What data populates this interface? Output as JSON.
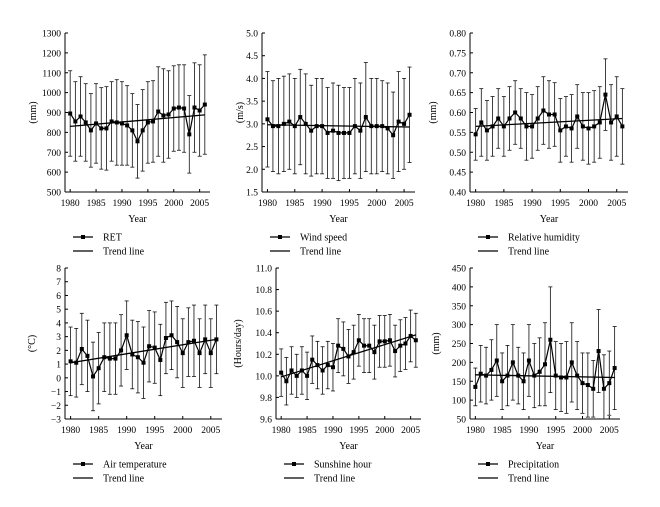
{
  "chart_data": [
    {
      "type": "line",
      "ylabel": "(mm)",
      "xlabel": "Year",
      "xlim": [
        1979,
        2007
      ],
      "ylim": [
        500,
        1300
      ],
      "yticks": [
        500,
        600,
        700,
        800,
        900,
        1000,
        1100,
        1200,
        1300
      ],
      "ytick_labels": [
        "500",
        "600",
        "700",
        "800",
        "900",
        "1000",
        "1100",
        "1200",
        "1300"
      ],
      "xticks": [
        1980,
        1985,
        1990,
        1995,
        2000,
        2005
      ],
      "xtick_labels": [
        "1980",
        "1985",
        "1990",
        "1995",
        "2000",
        "2005"
      ],
      "x": [
        1980,
        1981,
        1982,
        1983,
        1984,
        1985,
        1986,
        1987,
        1988,
        1989,
        1990,
        1991,
        1992,
        1993,
        1994,
        1995,
        1996,
        1997,
        1998,
        1999,
        2000,
        2001,
        2002,
        2003,
        2004,
        2005,
        2006
      ],
      "series": [
        {
          "name": "RET",
          "values": [
            895,
            855,
            880,
            850,
            810,
            845,
            820,
            820,
            855,
            850,
            845,
            835,
            810,
            755,
            810,
            850,
            855,
            905,
            885,
            890,
            920,
            925,
            920,
            790,
            925,
            910,
            940
          ],
          "error": [
            215,
            200,
            200,
            195,
            185,
            200,
            205,
            210,
            200,
            215,
            210,
            200,
            185,
            185,
            205,
            205,
            205,
            225,
            235,
            220,
            215,
            215,
            220,
            195,
            225,
            230,
            250
          ]
        }
      ],
      "trend": {
        "name": "Trend line",
        "x": [
          1980,
          2006
        ],
        "y": [
          830,
          888
        ]
      },
      "legend": [
        "RET",
        "Trend line"
      ],
      "grid": false
    },
    {
      "type": "line",
      "ylabel": "(m/s)",
      "xlabel": "Year",
      "xlim": [
        1979,
        2007
      ],
      "ylim": [
        1.5,
        5.0
      ],
      "yticks": [
        1.5,
        2.0,
        2.5,
        3.0,
        3.5,
        4.0,
        4.5,
        5.0
      ],
      "ytick_labels": [
        "1.5",
        "2.0",
        "2.5",
        "3.0",
        "3.5",
        "4.0",
        "4.5",
        "5.0"
      ],
      "xticks": [
        1980,
        1985,
        1990,
        1995,
        2000,
        2005
      ],
      "xtick_labels": [
        "1980",
        "1985",
        "1990",
        "1995",
        "2000",
        "2005"
      ],
      "x": [
        1980,
        1981,
        1982,
        1983,
        1984,
        1985,
        1986,
        1987,
        1988,
        1989,
        1990,
        1991,
        1992,
        1993,
        1994,
        1995,
        1996,
        1997,
        1998,
        1999,
        2000,
        2001,
        2002,
        2003,
        2004,
        2005,
        2006
      ],
      "series": [
        {
          "name": "Wind speed",
          "values": [
            3.1,
            2.95,
            2.95,
            3.0,
            3.05,
            2.95,
            3.15,
            3.0,
            2.85,
            2.95,
            2.95,
            2.8,
            2.85,
            2.8,
            2.8,
            2.8,
            2.95,
            2.85,
            3.15,
            2.95,
            2.95,
            2.95,
            2.9,
            2.75,
            3.05,
            3.0,
            3.2
          ],
          "error": [
            1.05,
            1.0,
            1.05,
            1.05,
            1.05,
            1.05,
            1.05,
            1.1,
            1.0,
            1.05,
            1.05,
            1.0,
            1.05,
            1.05,
            1.0,
            1.0,
            1.05,
            1.05,
            1.2,
            1.05,
            1.05,
            1.0,
            1.0,
            0.95,
            1.1,
            1.0,
            1.05
          ]
        }
      ],
      "trend": {
        "name": "Trend line",
        "x": [
          1980,
          2006
        ],
        "y": [
          2.98,
          2.93
        ]
      },
      "legend": [
        "Wind speed",
        "Trend line"
      ],
      "grid": false
    },
    {
      "type": "line",
      "ylabel": "(mm)",
      "xlabel": "Year",
      "xlim": [
        1979,
        2007
      ],
      "ylim": [
        0.4,
        0.8
      ],
      "yticks": [
        0.4,
        0.45,
        0.5,
        0.55,
        0.6,
        0.65,
        0.7,
        0.75,
        0.8
      ],
      "ytick_labels": [
        "0.40",
        "0.45",
        "0.50",
        "0.55",
        "0.60",
        "0.65",
        "0.70",
        "0.75",
        "0.80"
      ],
      "xticks": [
        1980,
        1985,
        1990,
        1995,
        2000,
        2005
      ],
      "xtick_labels": [
        "1980",
        "1985",
        "1990",
        "1995",
        "2000",
        "2005"
      ],
      "x": [
        1980,
        1981,
        1982,
        1983,
        1984,
        1985,
        1986,
        1987,
        1988,
        1989,
        1990,
        1991,
        1992,
        1993,
        1994,
        1995,
        1996,
        1997,
        1998,
        1999,
        2000,
        2001,
        2002,
        2003,
        2004,
        2005,
        2006
      ],
      "series": [
        {
          "name": "Relative humidity",
          "values": [
            0.545,
            0.575,
            0.555,
            0.565,
            0.585,
            0.565,
            0.585,
            0.6,
            0.585,
            0.565,
            0.565,
            0.585,
            0.605,
            0.595,
            0.595,
            0.555,
            0.565,
            0.56,
            0.59,
            0.565,
            0.56,
            0.565,
            0.575,
            0.645,
            0.575,
            0.59,
            0.565
          ],
          "error": [
            0.065,
            0.085,
            0.075,
            0.075,
            0.075,
            0.075,
            0.08,
            0.08,
            0.075,
            0.085,
            0.08,
            0.08,
            0.085,
            0.085,
            0.08,
            0.08,
            0.075,
            0.085,
            0.08,
            0.085,
            0.09,
            0.09,
            0.09,
            0.09,
            0.095,
            0.1,
            0.095
          ]
        }
      ],
      "trend": {
        "name": "Trend line",
        "x": [
          1980,
          2006
        ],
        "y": [
          0.565,
          0.585
        ]
      },
      "legend": [
        "Relative humidity",
        "Trend line"
      ],
      "grid": false
    },
    {
      "type": "line",
      "ylabel": "(°C)",
      "xlabel": "Year",
      "xlim": [
        1979,
        2007
      ],
      "ylim": [
        -3,
        8
      ],
      "yticks": [
        -3,
        -2,
        -1,
        0,
        1,
        2,
        3,
        4,
        5,
        6,
        7,
        8
      ],
      "ytick_labels": [
        "−3",
        "−2",
        "−1",
        "0",
        "1",
        "2",
        "3",
        "4",
        "5",
        "6",
        "7",
        "8"
      ],
      "xticks": [
        1980,
        1985,
        1990,
        1995,
        2000,
        2005
      ],
      "xtick_labels": [
        "1980",
        "1985",
        "1990",
        "1995",
        "2000",
        "2005"
      ],
      "x": [
        1980,
        1981,
        1982,
        1983,
        1984,
        1985,
        1986,
        1987,
        1988,
        1989,
        1990,
        1991,
        1992,
        1993,
        1994,
        1995,
        1996,
        1997,
        1998,
        1999,
        2000,
        2001,
        2002,
        2003,
        2004,
        2005,
        2006
      ],
      "series": [
        {
          "name": "Air temperature",
          "values": [
            1.2,
            1.1,
            2.1,
            1.6,
            0.1,
            0.7,
            1.5,
            1.4,
            1.4,
            2.0,
            3.1,
            1.7,
            1.5,
            1.1,
            2.3,
            2.2,
            1.3,
            2.9,
            3.1,
            2.6,
            1.8,
            2.6,
            2.7,
            1.8,
            2.8,
            1.8,
            2.8
          ],
          "error": [
            2.5,
            2.5,
            2.6,
            2.6,
            2.5,
            2.6,
            2.5,
            2.6,
            2.6,
            2.6,
            2.5,
            2.5,
            2.6,
            2.6,
            2.6,
            2.6,
            2.6,
            2.6,
            2.5,
            2.6,
            2.5,
            2.5,
            2.6,
            2.5,
            2.5,
            2.5,
            2.5
          ]
        }
      ],
      "trend": {
        "name": "Trend line",
        "x": [
          1980,
          2006
        ],
        "y": [
          1.1,
          2.8
        ]
      },
      "legend": [
        "Air temperature",
        "Trend line"
      ],
      "grid": false
    },
    {
      "type": "line",
      "ylabel": "(Hours/day)",
      "xlabel": "Year",
      "xlim": [
        1979,
        2007
      ],
      "ylim": [
        9.6,
        11.0
      ],
      "yticks": [
        9.6,
        9.8,
        10.0,
        10.2,
        10.4,
        10.6,
        10.8,
        11.0
      ],
      "ytick_labels": [
        "9.6",
        "9.8",
        "10.0",
        "10.2",
        "10.4",
        "10.6",
        "10.8",
        "11.0"
      ],
      "xticks": [
        1980,
        1985,
        1990,
        1995,
        2000,
        2005
      ],
      "xtick_labels": [
        "1980",
        "1985",
        "1990",
        "1995",
        "2000",
        "2005"
      ],
      "x": [
        1980,
        1981,
        1982,
        1983,
        1984,
        1985,
        1986,
        1987,
        1988,
        1989,
        1990,
        1991,
        1992,
        1993,
        1994,
        1995,
        1996,
        1997,
        1998,
        1999,
        2000,
        2001,
        2002,
        2003,
        2004,
        2005,
        2006
      ],
      "series": [
        {
          "name": "Sunshine hour",
          "values": [
            10.03,
            9.95,
            10.05,
            10.0,
            10.05,
            10.0,
            10.15,
            10.1,
            10.05,
            10.1,
            10.08,
            10.28,
            10.25,
            10.18,
            10.22,
            10.33,
            10.28,
            10.28,
            10.22,
            10.32,
            10.32,
            10.33,
            10.23,
            10.28,
            10.3,
            10.37,
            10.33
          ],
          "error": [
            0.22,
            0.22,
            0.22,
            0.2,
            0.22,
            0.22,
            0.22,
            0.22,
            0.22,
            0.22,
            0.22,
            0.25,
            0.25,
            0.25,
            0.25,
            0.24,
            0.25,
            0.25,
            0.25,
            0.24,
            0.24,
            0.24,
            0.24,
            0.24,
            0.24,
            0.24,
            0.25
          ]
        }
      ],
      "trend": {
        "name": "Trend line",
        "x": [
          1980,
          2006
        ],
        "y": [
          9.99,
          10.38
        ]
      },
      "legend": [
        "Sunshine hour",
        "Trend line"
      ],
      "grid": false
    },
    {
      "type": "line",
      "ylabel": "(mm)",
      "xlabel": "Year",
      "xlim": [
        1979,
        2007
      ],
      "ylim": [
        50,
        450
      ],
      "yticks": [
        50,
        100,
        150,
        200,
        250,
        300,
        350,
        400,
        450
      ],
      "ytick_labels": [
        "50",
        "100",
        "150",
        "200",
        "250",
        "300",
        "350",
        "400",
        "450"
      ],
      "xticks": [
        1980,
        1985,
        1990,
        1995,
        2000,
        2005
      ],
      "xtick_labels": [
        "1980",
        "1985",
        "1990",
        "1995",
        "2000",
        "2005"
      ],
      "x": [
        1980,
        1981,
        1982,
        1983,
        1984,
        1985,
        1986,
        1987,
        1988,
        1989,
        1990,
        1991,
        1992,
        1993,
        1994,
        1995,
        1996,
        1997,
        1998,
        1999,
        2000,
        2001,
        2002,
        2003,
        2004,
        2005,
        2006
      ],
      "series": [
        {
          "name": "Precipitation",
          "values": [
            135,
            170,
            165,
            180,
            205,
            150,
            165,
            200,
            165,
            150,
            205,
            165,
            175,
            195,
            260,
            165,
            160,
            160,
            200,
            165,
            145,
            140,
            130,
            230,
            130,
            145,
            185
          ],
          "error": [
            50,
            75,
            75,
            80,
            95,
            75,
            80,
            100,
            75,
            75,
            95,
            85,
            90,
            110,
            140,
            90,
            90,
            95,
            105,
            90,
            80,
            85,
            75,
            110,
            90,
            85,
            110
          ]
        }
      ],
      "trend": {
        "name": "Trend line",
        "x": [
          1980,
          2006
        ],
        "y": [
          167,
          160
        ]
      },
      "legend": [
        "Precipitation",
        "Trend line"
      ],
      "grid": false
    }
  ]
}
